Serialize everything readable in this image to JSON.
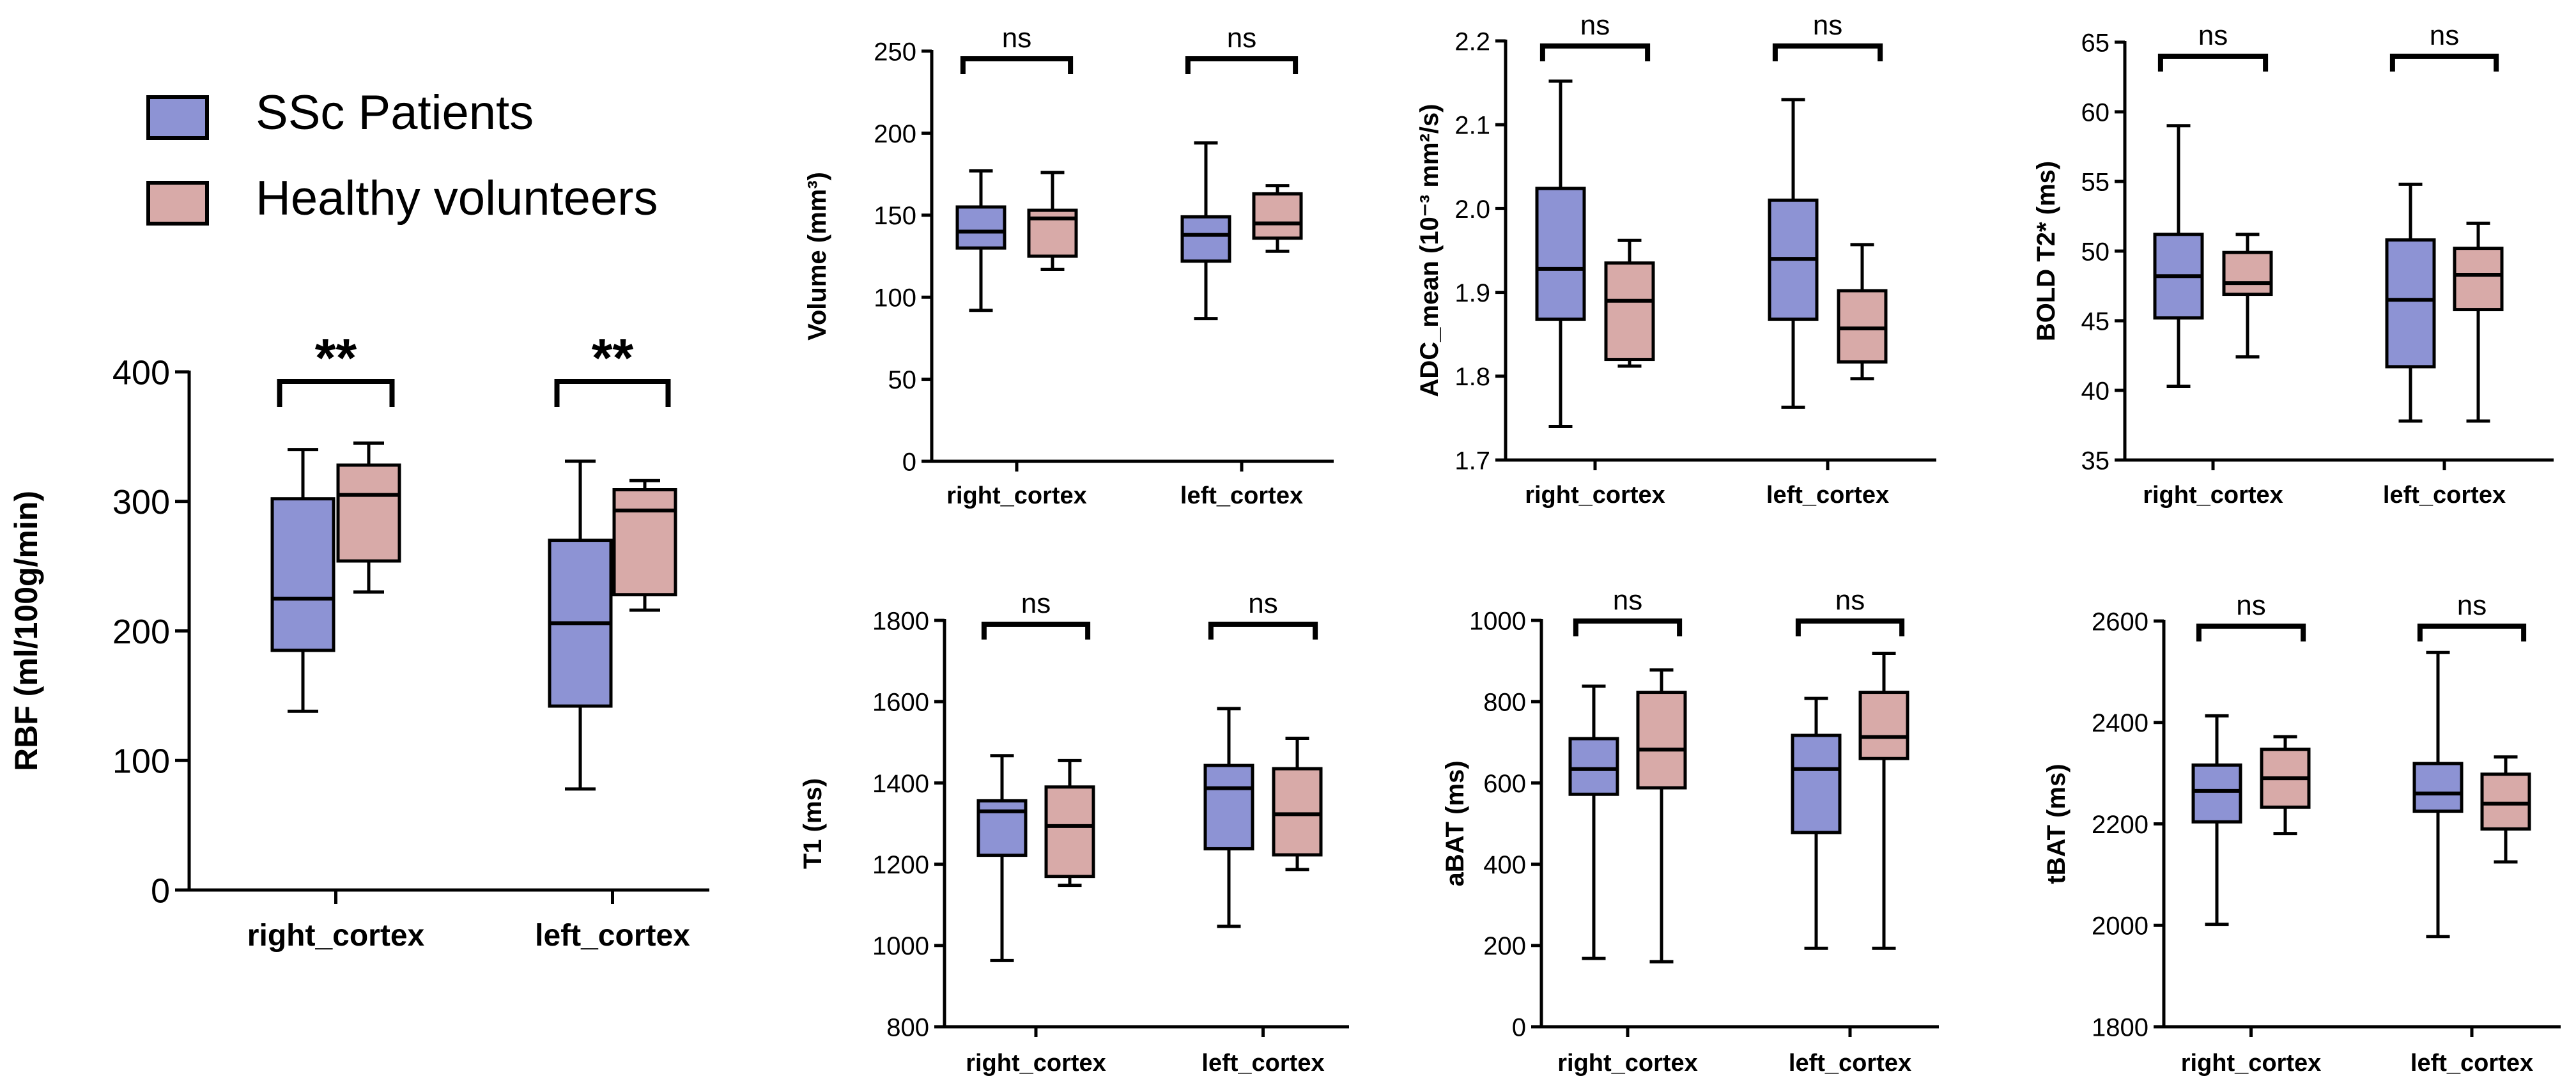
{
  "colors": {
    "ssc": "#8d93d4",
    "healthy": "#d8aaa8"
  },
  "legend": [
    {
      "label": "SSc Patients",
      "color": "#8d93d4"
    },
    {
      "label": "Healthy volunteers",
      "color": "#d8aaa8"
    }
  ],
  "chart_data": [
    {
      "id": "rbf",
      "type": "box",
      "ylabel": "RBF (ml/100g/min)",
      "ylim": [
        0,
        400
      ],
      "yticks": [
        "0",
        "100",
        "200",
        "300",
        "400"
      ],
      "categories": [
        "right_cortex",
        "left_cortex"
      ],
      "series": [
        {
          "name": "SSc Patients",
          "boxes": [
            {
              "min": 138,
              "q1": 185,
              "median": 225,
              "q3": 302,
              "max": 340
            },
            {
              "min": 78,
              "q1": 142,
              "median": 206,
              "q3": 270,
              "max": 331
            }
          ]
        },
        {
          "name": "Healthy volunteers",
          "boxes": [
            {
              "min": 230,
              "q1": 254,
              "median": 305,
              "q3": 328,
              "max": 345
            },
            {
              "min": 216,
              "q1": 228,
              "median": 293,
              "q3": 309,
              "max": 316
            }
          ]
        }
      ],
      "significance": [
        "**",
        "**"
      ]
    },
    {
      "id": "volume",
      "type": "box",
      "ylabel": "Volume (mm³)",
      "ylim": [
        0,
        250
      ],
      "yticks": [
        "0",
        "50",
        "100",
        "150",
        "200",
        "250"
      ],
      "categories": [
        "right_cortex",
        "left_cortex"
      ],
      "series": [
        {
          "name": "SSc Patients",
          "boxes": [
            {
              "min": 92,
              "q1": 130,
              "median": 140,
              "q3": 155,
              "max": 177
            },
            {
              "min": 87,
              "q1": 122,
              "median": 138,
              "q3": 149,
              "max": 194
            }
          ]
        },
        {
          "name": "Healthy volunteers",
          "boxes": [
            {
              "min": 117,
              "q1": 125,
              "median": 148,
              "q3": 153,
              "max": 176
            },
            {
              "min": 128,
              "q1": 136,
              "median": 145,
              "q3": 163,
              "max": 168
            }
          ]
        }
      ],
      "significance": [
        "ns",
        "ns"
      ]
    },
    {
      "id": "adc",
      "type": "box",
      "ylabel": "ADC_mean (10⁻³ mm²/s)",
      "ylim": [
        1.7,
        2.2
      ],
      "yticks": [
        "1.7",
        "1.8",
        "1.9",
        "2.0",
        "2.1",
        "2.2"
      ],
      "categories": [
        "right_cortex",
        "left_cortex"
      ],
      "series": [
        {
          "name": "SSc Patients",
          "boxes": [
            {
              "min": 1.74,
              "q1": 1.868,
              "median": 1.928,
              "q3": 2.024,
              "max": 2.152
            },
            {
              "min": 1.763,
              "q1": 1.868,
              "median": 1.94,
              "q3": 2.01,
              "max": 2.13
            }
          ]
        },
        {
          "name": "Healthy volunteers",
          "boxes": [
            {
              "min": 1.812,
              "q1": 1.82,
              "median": 1.89,
              "q3": 1.935,
              "max": 1.962
            },
            {
              "min": 1.797,
              "q1": 1.817,
              "median": 1.857,
              "q3": 1.902,
              "max": 1.957
            }
          ]
        }
      ],
      "significance": [
        "ns",
        "ns"
      ]
    },
    {
      "id": "bold",
      "type": "box",
      "ylabel": "BOLD T2* (ms)",
      "ylim": [
        35,
        65
      ],
      "yticks": [
        "35",
        "40",
        "45",
        "50",
        "55",
        "60",
        "65"
      ],
      "categories": [
        "right_cortex",
        "left_cortex"
      ],
      "series": [
        {
          "name": "SSc Patients",
          "boxes": [
            {
              "min": 40.3,
              "q1": 45.2,
              "median": 48.2,
              "q3": 51.2,
              "max": 59
            },
            {
              "min": 37.8,
              "q1": 41.7,
              "median": 46.5,
              "q3": 50.8,
              "max": 54.8
            }
          ]
        },
        {
          "name": "Healthy volunteers",
          "boxes": [
            {
              "min": 42.4,
              "q1": 46.9,
              "median": 47.7,
              "q3": 49.9,
              "max": 51.2
            },
            {
              "min": 37.8,
              "q1": 45.8,
              "median": 48.3,
              "q3": 50.2,
              "max": 52
            }
          ]
        }
      ],
      "significance": [
        "ns",
        "ns"
      ]
    },
    {
      "id": "t1",
      "type": "box",
      "ylabel": "T1 (ms)",
      "ylim": [
        800,
        1800
      ],
      "yticks": [
        "800",
        "1000",
        "1200",
        "1400",
        "1600",
        "1800"
      ],
      "categories": [
        "right_cortex",
        "left_cortex"
      ],
      "series": [
        {
          "name": "SSc Patients",
          "boxes": [
            {
              "min": 963,
              "q1": 1222,
              "median": 1330,
              "q3": 1356,
              "max": 1467
            },
            {
              "min": 1047,
              "q1": 1238,
              "median": 1387,
              "q3": 1443,
              "max": 1583
            }
          ]
        },
        {
          "name": "Healthy volunteers",
          "boxes": [
            {
              "min": 1148,
              "q1": 1170,
              "median": 1294,
              "q3": 1390,
              "max": 1455
            },
            {
              "min": 1187,
              "q1": 1223,
              "median": 1323,
              "q3": 1435,
              "max": 1510
            }
          ]
        }
      ],
      "significance": [
        "ns",
        "ns"
      ]
    },
    {
      "id": "abat",
      "type": "box",
      "ylabel": "aBAT (ms)",
      "ylim": [
        0,
        1000
      ],
      "yticks": [
        "0",
        "200",
        "400",
        "600",
        "800",
        "1000"
      ],
      "categories": [
        "right_cortex",
        "left_cortex"
      ],
      "series": [
        {
          "name": "SSc Patients",
          "boxes": [
            {
              "min": 168,
              "q1": 572,
              "median": 634,
              "q3": 709,
              "max": 838
            },
            {
              "min": 193,
              "q1": 478,
              "median": 634,
              "q3": 717,
              "max": 808
            }
          ]
        },
        {
          "name": "Healthy volunteers",
          "boxes": [
            {
              "min": 160,
              "q1": 588,
              "median": 682,
              "q3": 823,
              "max": 878
            },
            {
              "min": 193,
              "q1": 660,
              "median": 713,
              "q3": 823,
              "max": 919
            }
          ]
        }
      ],
      "significance": [
        "ns",
        "ns"
      ]
    },
    {
      "id": "tbat",
      "type": "box",
      "ylabel": "tBAT (ms)",
      "ylim": [
        1800,
        2600
      ],
      "yticks": [
        "1800",
        "2000",
        "2200",
        "2400",
        "2600"
      ],
      "categories": [
        "right_cortex",
        "left_cortex"
      ],
      "series": [
        {
          "name": "SSc Patients",
          "boxes": [
            {
              "min": 2002,
              "q1": 2204,
              "median": 2265,
              "q3": 2316,
              "max": 2413
            },
            {
              "min": 1978,
              "q1": 2225,
              "median": 2260,
              "q3": 2319,
              "max": 2538
            }
          ]
        },
        {
          "name": "Healthy volunteers",
          "boxes": [
            {
              "min": 2181,
              "q1": 2233,
              "median": 2290,
              "q3": 2347,
              "max": 2372
            },
            {
              "min": 2125,
              "q1": 2190,
              "median": 2240,
              "q3": 2298,
              "max": 2332
            }
          ]
        }
      ],
      "significance": [
        "ns",
        "ns"
      ]
    }
  ]
}
